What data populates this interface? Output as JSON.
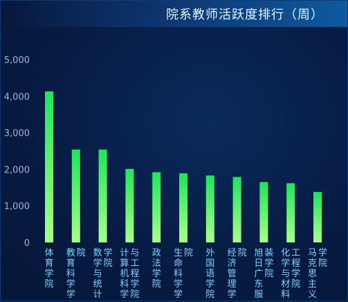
{
  "header": {
    "title": "院系教师活跃度排行（周）"
  },
  "chart_data": {
    "type": "bar",
    "title": "院系教师活跃度排行（周）",
    "xlabel": "",
    "ylabel": "",
    "ylim": [
      0,
      5000
    ],
    "yticks": [
      "0",
      "1,000",
      "2,000",
      "3,000",
      "4,000",
      "5,000"
    ],
    "categories": [
      "体育学院",
      "教育科学学院",
      "数学与统计学院",
      "计算机科学与工程学院",
      "政法学院",
      "生命科学学院",
      "外国语学院",
      "经济管理学院",
      "旭日广东服装学院",
      "化学与材料工程学院",
      "马克思主义学院"
    ],
    "label_columns": [
      [
        [
          "体",
          "育",
          "学",
          "院"
        ]
      ],
      [
        [
          "教",
          "育",
          "科",
          "学",
          "学"
        ],
        [
          "院"
        ]
      ],
      [
        [
          "数",
          "学",
          "与",
          "统",
          "计"
        ],
        [
          "学",
          "院"
        ]
      ],
      [
        [
          "计",
          "算",
          "机",
          "科",
          "学"
        ],
        [
          "与",
          "工",
          "程",
          "学",
          "院"
        ]
      ],
      [
        [
          "政",
          "法",
          "学",
          "院"
        ]
      ],
      [
        [
          "生",
          "命",
          "科",
          "学",
          "学"
        ],
        [
          "院"
        ]
      ],
      [
        [
          "外",
          "国",
          "语",
          "学",
          "院"
        ]
      ],
      [
        [
          "经",
          "济",
          "管",
          "理",
          "学"
        ],
        [
          "院"
        ]
      ],
      [
        [
          "旭",
          "日",
          "广",
          "东",
          "服"
        ],
        [
          "装",
          "学",
          "院"
        ]
      ],
      [
        [
          "化",
          "学",
          "与",
          "材",
          "料"
        ],
        [
          "工",
          "程",
          "学",
          "院"
        ]
      ],
      [
        [
          "马",
          "克",
          "思",
          "主",
          "义"
        ],
        [
          "学",
          "院"
        ]
      ]
    ],
    "values": [
      4130,
      2540,
      2540,
      2010,
      1920,
      1890,
      1830,
      1790,
      1650,
      1620,
      1380
    ],
    "colors": {
      "bar_top": "#1ee55a",
      "bar_bottom": "#a8ff8a",
      "tick": "#9fb6d6",
      "label": "#7fd4ff"
    },
    "grid": false,
    "legend": "none"
  }
}
